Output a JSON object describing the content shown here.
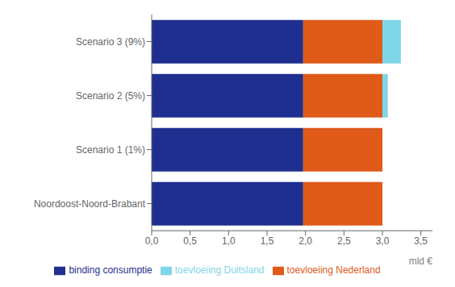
{
  "chart_data": {
    "type": "bar",
    "orientation": "horizontal",
    "stacked": true,
    "grid": false,
    "legend": "bottom",
    "xlabel": "mld €",
    "categories": [
      "Noordoost-Noord-Brabant",
      "Scenario 1 (1%)",
      "Scenario 2 (5%)",
      "Scenario 3 (9%)"
    ],
    "series": [
      {
        "name": "binding consumptie",
        "color": "#1F2F8F",
        "values": [
          1.97,
          1.97,
          1.97,
          1.97
        ]
      },
      {
        "name": "toevloeiing Nederland",
        "color": "#E05A1A",
        "values": [
          1.03,
          1.03,
          1.03,
          1.03
        ]
      },
      {
        "name": "toevloeiing Duitsland",
        "color": "#7FD6E8",
        "values": [
          0.0,
          0.0,
          0.07,
          0.24
        ]
      }
    ],
    "xlim": [
      0,
      3.65
    ],
    "xticks": [
      {
        "value": 0.0,
        "label": "0,0"
      },
      {
        "value": 0.5,
        "label": "0,5"
      },
      {
        "value": 1.0,
        "label": "1,0"
      },
      {
        "value": 1.5,
        "label": "1,5"
      },
      {
        "value": 2.0,
        "label": "2,0"
      },
      {
        "value": 2.5,
        "label": "2,5"
      },
      {
        "value": 3.0,
        "label": "3,0"
      },
      {
        "value": 3.5,
        "label": "3,5"
      }
    ]
  }
}
